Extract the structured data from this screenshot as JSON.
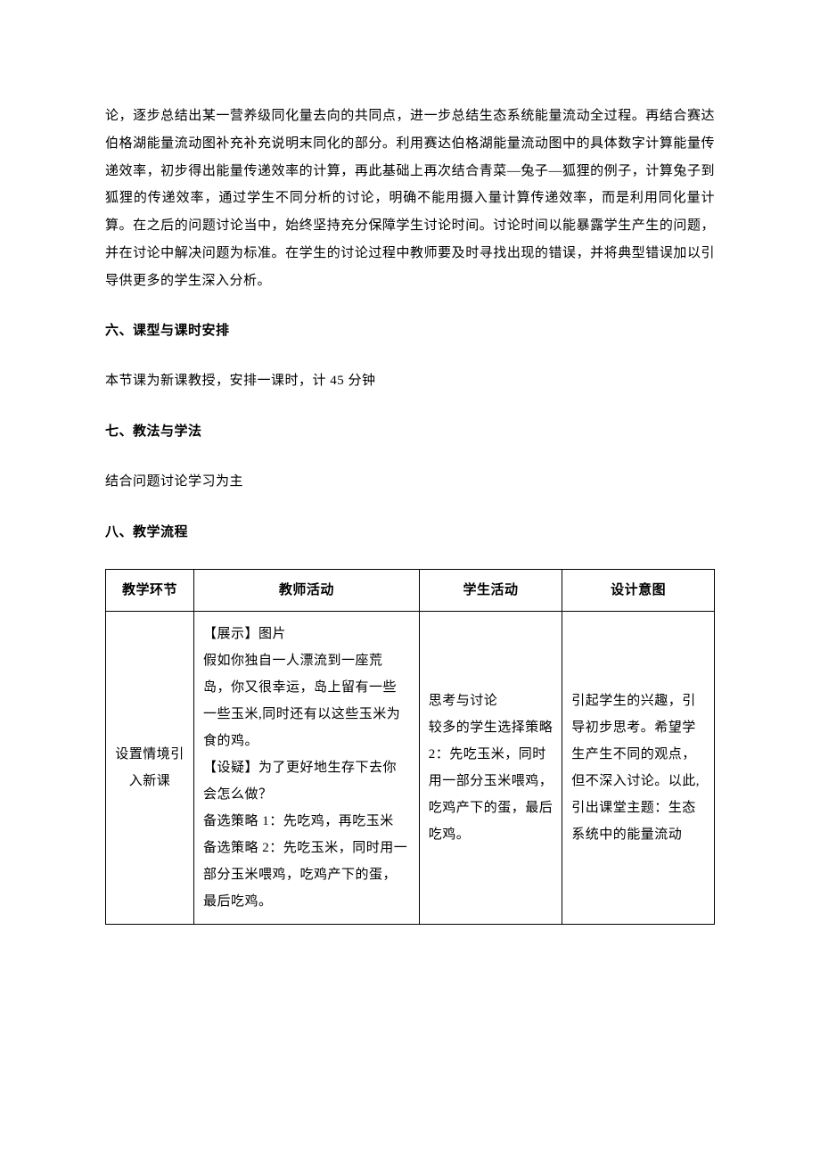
{
  "para1": "论，逐步总结出某一营养级同化量去向的共同点，进一步总结生态系统能量流动全过程。再结合赛达伯格湖能量流动图补充补充说明末同化的部分。利用赛达伯格湖能量流动图中的具体数字计算能量传递效率，初步得出能量传递效率的计算，再此基础上再次结合青菜—兔子—狐狸的例子，计算兔子到狐狸的传递效率，通过学生不同分析的讨论，明确不能用摄入量计算传递效率，而是利用同化量计算。在之后的问题讨论当中，始终坚持充分保障学生讨论时间。讨论时间以能暴露学生产生的问题，并在讨论中解决问题为标准。在学生的讨论过程中教师要及时寻找出现的错误，并将典型错误加以引导供更多的学生深入分析。",
  "heading6": "六、课型与课时安排",
  "para6": "本节课为新课教授，安排一课时，计 45 分钟",
  "heading7": "七、教法与学法",
  "para7": "结合问题讨论学习为主",
  "heading8": "八、教学流程",
  "table": {
    "headers": [
      "教学环节",
      "教师活动",
      "学生活动",
      "设计意图"
    ],
    "row1": {
      "c1": "设置情境引入新课",
      "c2": "【展示】图片\n假如你独自一人漂流到一座荒岛，你又很幸运，岛上留有一些一些玉米,同时还有以这些玉米为食的鸡。\n【设疑】为了更好地生存下去你会怎么做？\n备选策略 1：先吃鸡，再吃玉米\n备选策略 2：先吃玉米，同时用一部分玉米喂鸡，吃鸡产下的蛋，最后吃鸡。",
      "c3": "思考与讨论\n较多的学生选择策略 2：先吃玉米，同时用一部分玉米喂鸡，吃鸡产下的蛋，最后吃鸡。",
      "c4": "引起学生的兴趣，引导初步思考。希望学生产生不同的观点，但不深入讨论。以此,引出课堂主题：生态系统中的能量流动"
    }
  }
}
